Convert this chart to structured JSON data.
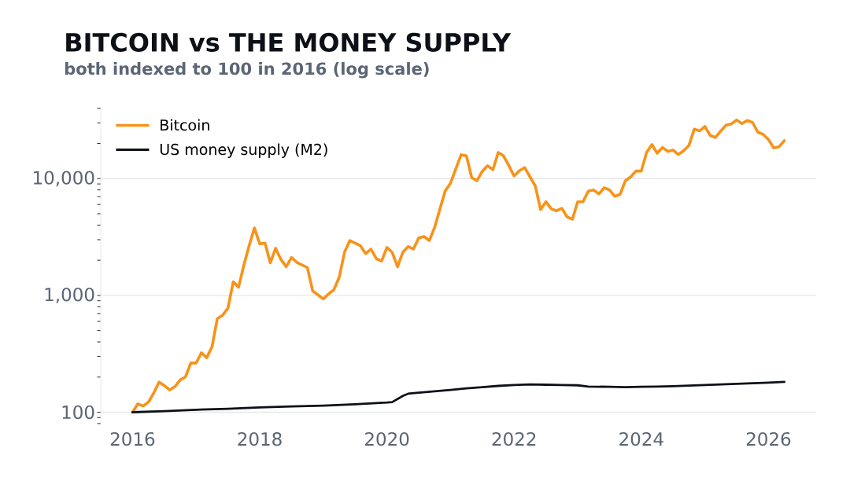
{
  "chart_data": {
    "type": "line",
    "title": "BITCOIN vs THE MONEY SUPPLY",
    "subtitle": "both indexed to 100 in 2016 (log scale)",
    "log": "y",
    "grid": "y",
    "legend": "top left",
    "marker": "none",
    "line_style": "solid",
    "xlim": [
      "2015-07",
      "2026-10"
    ],
    "xticks": [
      {
        "value": "2016",
        "label": "2016"
      },
      {
        "value": "2018",
        "label": "2018"
      },
      {
        "value": "2020",
        "label": "2020"
      },
      {
        "value": "2022",
        "label": "2022"
      },
      {
        "value": "2024",
        "label": "2024"
      },
      {
        "value": "2026",
        "label": "2026"
      }
    ],
    "ylim": [
      80,
      40000
    ],
    "yticks": [
      {
        "value": 80,
        "label": null
      },
      {
        "value": 90,
        "label": null
      },
      {
        "value": 100,
        "label": "100"
      },
      {
        "value": 200,
        "label": null
      },
      {
        "value": 300,
        "label": null
      },
      {
        "value": 400,
        "label": null
      },
      {
        "value": 500,
        "label": null
      },
      {
        "value": 600,
        "label": null
      },
      {
        "value": 700,
        "label": null
      },
      {
        "value": 800,
        "label": null
      },
      {
        "value": 900,
        "label": null
      },
      {
        "value": 1000,
        "label": "1,000"
      },
      {
        "value": 2000,
        "label": null
      },
      {
        "value": 3000,
        "label": null
      },
      {
        "value": 4000,
        "label": null
      },
      {
        "value": 5000,
        "label": null
      },
      {
        "value": 6000,
        "label": null
      },
      {
        "value": 7000,
        "label": null
      },
      {
        "value": 8000,
        "label": null
      },
      {
        "value": 9000,
        "label": null
      },
      {
        "value": 10000,
        "label": "10,000"
      },
      {
        "value": 20000,
        "label": null
      },
      {
        "value": 30000,
        "label": null
      },
      {
        "value": 40000,
        "label": null
      }
    ],
    "series": [
      {
        "name": "Bitcoin",
        "color": "#f7931a",
        "x": [
          "2016-01",
          "2016-02",
          "2016-03",
          "2016-04",
          "2016-05",
          "2016-06",
          "2016-07",
          "2016-08",
          "2016-09",
          "2016-10",
          "2016-11",
          "2016-12",
          "2017-01",
          "2017-02",
          "2017-03",
          "2017-04",
          "2017-05",
          "2017-06",
          "2017-07",
          "2017-08",
          "2017-09",
          "2017-10",
          "2017-11",
          "2017-12",
          "2018-01",
          "2018-02",
          "2018-03",
          "2018-04",
          "2018-05",
          "2018-06",
          "2018-07",
          "2018-08",
          "2018-09",
          "2018-10",
          "2018-11",
          "2018-12",
          "2019-01",
          "2019-02",
          "2019-03",
          "2019-04",
          "2019-05",
          "2019-06",
          "2019-07",
          "2019-08",
          "2019-09",
          "2019-10",
          "2019-11",
          "2019-12",
          "2020-01",
          "2020-02",
          "2020-03",
          "2020-04",
          "2020-05",
          "2020-06",
          "2020-07",
          "2020-08",
          "2020-09",
          "2020-10",
          "2020-11",
          "2020-12",
          "2021-01",
          "2021-02",
          "2021-03",
          "2021-04",
          "2021-05",
          "2021-06",
          "2021-07",
          "2021-08",
          "2021-09",
          "2021-10",
          "2021-11",
          "2021-12",
          "2022-01",
          "2022-02",
          "2022-03",
          "2022-04",
          "2022-05",
          "2022-06",
          "2022-07",
          "2022-08",
          "2022-09",
          "2022-10",
          "2022-11",
          "2022-12",
          "2023-01",
          "2023-02",
          "2023-03",
          "2023-04",
          "2023-05",
          "2023-06",
          "2023-07",
          "2023-08",
          "2023-09",
          "2023-10",
          "2023-11",
          "2023-12",
          "2024-01",
          "2024-02",
          "2024-03",
          "2024-04",
          "2024-05",
          "2024-06",
          "2024-07",
          "2024-08",
          "2024-09",
          "2024-10",
          "2024-11",
          "2024-12",
          "2025-01",
          "2025-02",
          "2025-03",
          "2025-04",
          "2025-05",
          "2025-06",
          "2025-07",
          "2025-08",
          "2025-09",
          "2025-10",
          "2025-11",
          "2025-12",
          "2026-01",
          "2026-02",
          "2026-03",
          "2026-04"
        ],
        "values": [
          100,
          118,
          113,
          122,
          146,
          181,
          169,
          155,
          166,
          189,
          201,
          264,
          264,
          323,
          293,
          364,
          633,
          677,
          778,
          1306,
          1177,
          1810,
          2660,
          3780,
          2770,
          2800,
          1900,
          2530,
          2030,
          1760,
          2110,
          1920,
          1820,
          1730,
          1090,
          1010,
          933,
          1030,
          1120,
          1430,
          2340,
          2950,
          2800,
          2660,
          2280,
          2490,
          2060,
          1970,
          2570,
          2340,
          1760,
          2340,
          2620,
          2490,
          3110,
          3190,
          2950,
          3820,
          5490,
          7840,
          9160,
          12100,
          16000,
          15700,
          10200,
          9600,
          11550,
          12900,
          11910,
          16750,
          15670,
          12940,
          10520,
          11670,
          12420,
          10360,
          8650,
          5430,
          6340,
          5520,
          5300,
          5570,
          4700,
          4490,
          6340,
          6340,
          7800,
          8000,
          7400,
          8340,
          8000,
          7040,
          7340,
          9590,
          10360,
          11610,
          11610,
          16750,
          19550,
          16490,
          18480,
          17090,
          17550,
          16070,
          17320,
          19270,
          26550,
          25580,
          27930,
          23440,
          22490,
          25580,
          28690,
          29400,
          31780,
          29580,
          31480,
          30200,
          24950,
          23930,
          21580,
          18300,
          18760,
          21130
        ]
      },
      {
        "name": "US money supply (M2)",
        "color": "#0d1117",
        "x": [
          "2016-01",
          "2016-07",
          "2017-01",
          "2017-07",
          "2018-01",
          "2018-07",
          "2019-01",
          "2019-07",
          "2020-01",
          "2020-02",
          "2020-04",
          "2020-05",
          "2020-07",
          "2020-10",
          "2021-01",
          "2021-04",
          "2021-07",
          "2021-10",
          "2022-01",
          "2022-04",
          "2022-07",
          "2022-10",
          "2023-01",
          "2023-03",
          "2023-07",
          "2023-10",
          "2024-01",
          "2024-04",
          "2024-07",
          "2024-10",
          "2025-01",
          "2025-04",
          "2025-07",
          "2025-10",
          "2026-01",
          "2026-04"
        ],
        "values": [
          100,
          102,
          105,
          107,
          110,
          112,
          114,
          117,
          121,
          122,
          138,
          144,
          147,
          151,
          155,
          160,
          164,
          168,
          171,
          173,
          172,
          171,
          170,
          166,
          165,
          164,
          165,
          166,
          167,
          169,
          171,
          173,
          175,
          177,
          179,
          182
        ]
      }
    ]
  }
}
